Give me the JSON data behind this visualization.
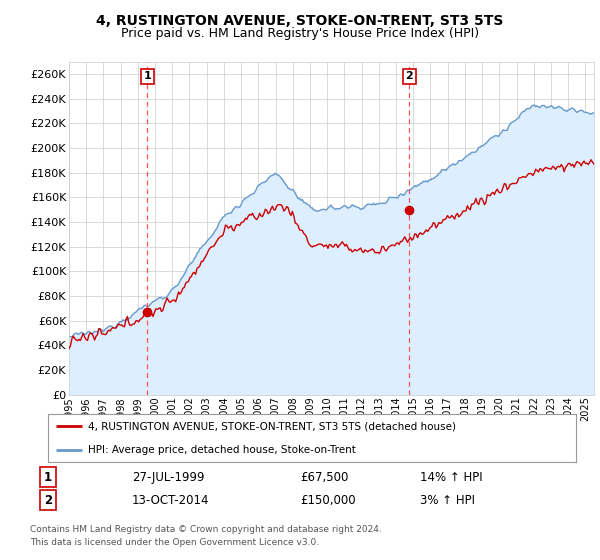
{
  "title": "4, RUSTINGTON AVENUE, STOKE-ON-TRENT, ST3 5TS",
  "subtitle": "Price paid vs. HM Land Registry's House Price Index (HPI)",
  "ylim": [
    0,
    270000
  ],
  "ytick_values": [
    0,
    20000,
    40000,
    60000,
    80000,
    100000,
    120000,
    140000,
    160000,
    180000,
    200000,
    220000,
    240000,
    260000
  ],
  "x_start_year": 1995,
  "x_end_year": 2025,
  "sale1_year": 1999.56,
  "sale1_price": 67500,
  "sale1_label": "1",
  "sale1_date": "27-JUL-1999",
  "sale1_price_str": "£67,500",
  "sale1_hpi_pct": "14% ↑ HPI",
  "sale2_year": 2014.78,
  "sale2_price": 150000,
  "sale2_label": "2",
  "sale2_date": "13-OCT-2014",
  "sale2_price_str": "£150,000",
  "sale2_hpi_pct": "3% ↑ HPI",
  "line_color_property": "#cc0000",
  "line_color_hpi": "#6699cc",
  "fill_color_hpi": "#ddeeff",
  "dashed_line_color": "#ff5555",
  "legend_label_property": "4, RUSTINGTON AVENUE, STOKE-ON-TRENT, ST3 5TS (detached house)",
  "legend_label_hpi": "HPI: Average price, detached house, Stoke-on-Trent",
  "footnote1": "Contains HM Land Registry data © Crown copyright and database right 2024.",
  "footnote2": "This data is licensed under the Open Government Licence v3.0.",
  "background_color": "#ffffff",
  "grid_color": "#cccccc",
  "title_fontsize": 10,
  "subtitle_fontsize": 9
}
